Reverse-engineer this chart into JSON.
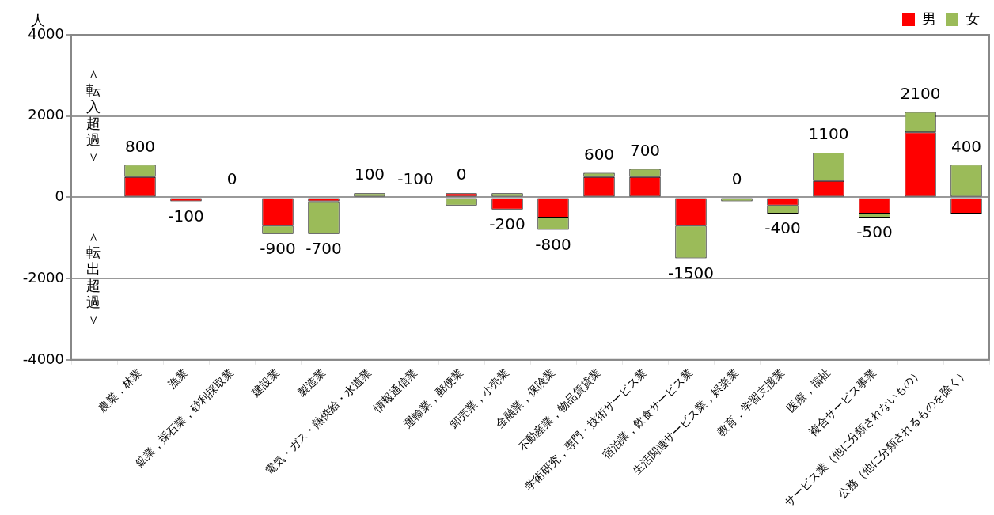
{
  "chart_data": {
    "type": "bar",
    "stacked": true,
    "ylabel": "人",
    "categories": [
      null,
      "農業，林業",
      "漁業",
      "鉱業，採石業，砂利採取業",
      "建設業",
      "製造業",
      "電気・ガス・熱供給・水道業",
      "情報通信業",
      "運輸業，郵便業",
      "卸売業，小売業",
      "金融業，保険業",
      "不動産業，物品賃貸業",
      "学術研究，専門・技術サービス業",
      "宿泊業，飲食サービス業",
      "生活関連サービス業，娯楽業",
      "教育，学習支援業",
      "医療，福祉",
      "複合サービス事業",
      "サービス業（他に分類されないもの）",
      "公務（他に分類されるものを除く）"
    ],
    "series": [
      {
        "name": "男",
        "color": "#ff0000",
        "values": [
          null,
          500,
          -100,
          0,
          -700,
          -100,
          0,
          0,
          100,
          -300,
          -500,
          500,
          500,
          -700,
          0,
          -200,
          400,
          -400,
          1600,
          -400
        ]
      },
      {
        "name": "女",
        "color": "#9bbb59",
        "values": [
          null,
          300,
          0,
          0,
          -200,
          -800,
          100,
          0,
          -200,
          100,
          -300,
          100,
          200,
          -800,
          -100,
          -200,
          700,
          -100,
          500,
          800
        ]
      }
    ],
    "totals": [
      null,
      "800",
      "-100",
      "0",
      "-900",
      null,
      "100",
      null,
      null,
      "-200",
      "-800",
      "600",
      "700",
      "-1500",
      null,
      "-400",
      "1100",
      "-500",
      "2100",
      "400"
    ],
    "ylim": [
      -4000,
      4000
    ],
    "yticks": [
      -4000,
      -2000,
      0,
      2000,
      4000
    ],
    "grid": "y",
    "legend": "top right",
    "annotations": [
      "＜転入超過＞",
      "＜転出超過＞",
      {
        "text": "-700",
        "x": "製造業",
        "y": -900
      },
      {
        "text": "-100",
        "x": "情報通信業",
        "y": 0
      },
      {
        "text": "0",
        "x": "運輸業，郵便業",
        "y": 100
      },
      {
        "text": "0",
        "x": "生活関連サービス業，娯楽業",
        "y": 0
      }
    ]
  }
}
